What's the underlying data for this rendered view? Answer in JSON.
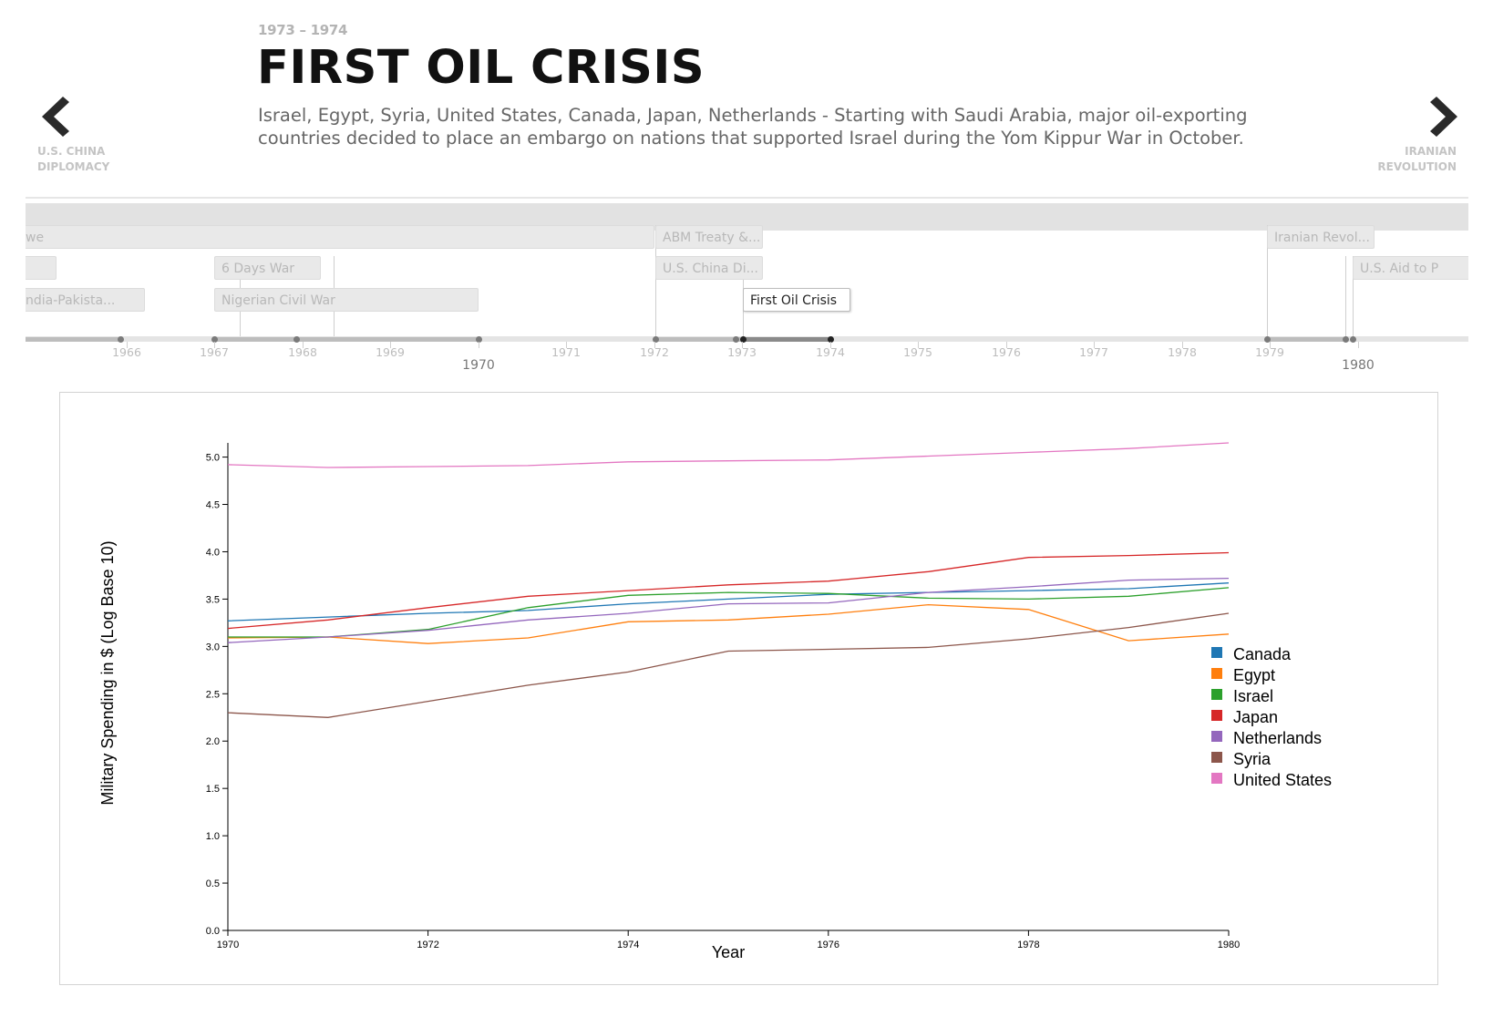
{
  "header": {
    "period": "1973 – 1974",
    "title": "FIRST OIL CRISIS",
    "description": "Israel, Egypt, Syria, United States, Canada, Japan, Netherlands - Starting with Saudi Arabia, major oil-exporting countries decided to place an embargo on nations that supported Israel during the Yom Kippur War in October."
  },
  "nav": {
    "prev_line1": "U.S. CHINA",
    "prev_line2": "DIPLOMACY",
    "next_line1": "IRANIAN",
    "next_line2": "REVOLUTION",
    "prev_icon": "chevron-left-icon",
    "next_icon": "chevron-right-icon"
  },
  "timeline": {
    "events": {
      "we": "we",
      "india_pakistan": "ndia-Pakista...",
      "six_days_war": "6 Days War",
      "nigerian_civil_war": "Nigerian Civil War",
      "abm_treaty": "ABM Treaty &...",
      "us_china": "U.S. China Di...",
      "first_oil_crisis": "First Oil Crisis",
      "iranian_revolution": "Iranian Revol...",
      "us_aid": "U.S. Aid to P"
    },
    "years": [
      "1966",
      "1967",
      "1968",
      "1969",
      "1970",
      "1971",
      "1972",
      "1973",
      "1974",
      "1975",
      "1976",
      "1977",
      "1978",
      "1979",
      "1980"
    ],
    "decade_1970": "1970",
    "decade_1980": "1980"
  },
  "chart_data": {
    "type": "line",
    "xlabel": "Year",
    "ylabel": "Military Spending in $ (Log Base 10)",
    "x": [
      1970,
      1971,
      1972,
      1973,
      1974,
      1975,
      1976,
      1977,
      1978,
      1979,
      1980
    ],
    "xlim": [
      1970,
      1980
    ],
    "ylim": [
      0,
      5.15
    ],
    "x_ticks": [
      "1970",
      "1972",
      "1974",
      "1976",
      "1978",
      "1980"
    ],
    "y_ticks": [
      "0.0",
      "0.5",
      "1.0",
      "1.5",
      "2.0",
      "2.5",
      "3.0",
      "3.5",
      "4.0",
      "4.5",
      "5.0"
    ],
    "legend_position": "right",
    "series": [
      {
        "name": "Canada",
        "color": "#1f77b4",
        "values": [
          3.27,
          3.31,
          3.35,
          3.38,
          3.45,
          3.5,
          3.55,
          3.57,
          3.59,
          3.61,
          3.67
        ]
      },
      {
        "name": "Egypt",
        "color": "#ff7f0e",
        "values": [
          3.09,
          3.1,
          3.03,
          3.09,
          3.26,
          3.28,
          3.34,
          3.44,
          3.39,
          3.06,
          3.13
        ]
      },
      {
        "name": "Israel",
        "color": "#2ca02c",
        "values": [
          3.1,
          3.1,
          3.18,
          3.41,
          3.54,
          3.57,
          3.56,
          3.51,
          3.5,
          3.53,
          3.62
        ]
      },
      {
        "name": "Japan",
        "color": "#d62728",
        "values": [
          3.19,
          3.28,
          3.41,
          3.53,
          3.59,
          3.65,
          3.69,
          3.79,
          3.94,
          3.96,
          3.99
        ]
      },
      {
        "name": "Netherlands",
        "color": "#9467bd",
        "values": [
          3.04,
          3.1,
          3.17,
          3.28,
          3.35,
          3.45,
          3.46,
          3.57,
          3.63,
          3.7,
          3.72
        ]
      },
      {
        "name": "Syria",
        "color": "#8c564b",
        "values": [
          2.3,
          2.25,
          2.42,
          2.59,
          2.73,
          2.95,
          2.97,
          2.99,
          3.08,
          3.2,
          3.35
        ]
      },
      {
        "name": "United States",
        "color": "#e377c2",
        "values": [
          4.92,
          4.89,
          4.9,
          4.91,
          4.95,
          4.96,
          4.97,
          5.01,
          5.05,
          5.09,
          5.15
        ]
      }
    ]
  }
}
